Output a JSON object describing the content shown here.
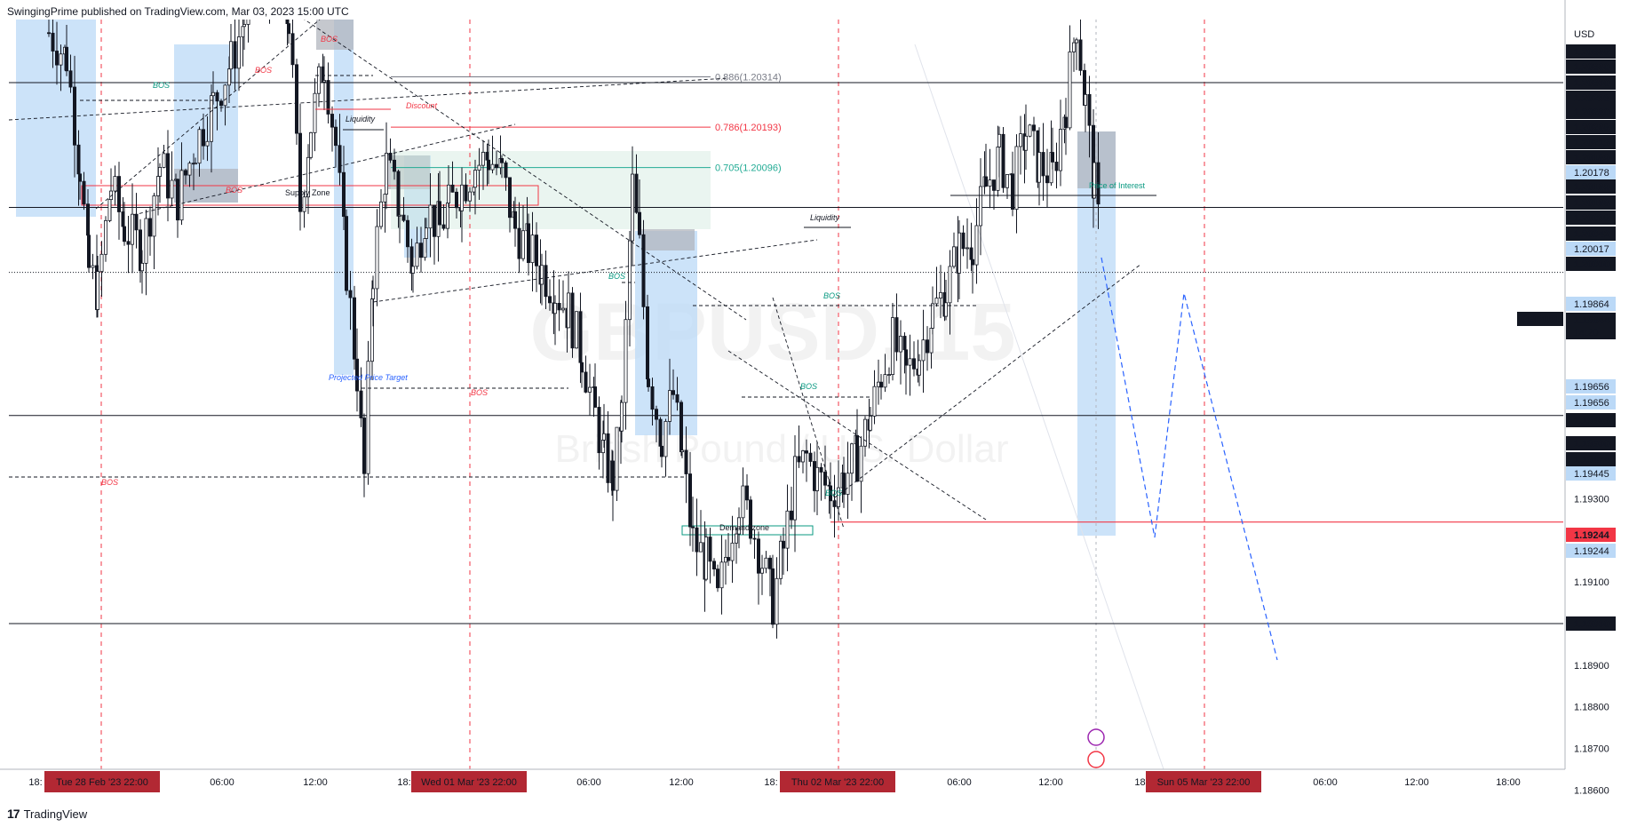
{
  "header": {
    "published": "SwingingPrime published on TradingView.com, Mar 03, 2023 15:00 UTC"
  },
  "footer": {
    "brand": "TradingView",
    "logo": "17"
  },
  "watermark": {
    "symbol": "GBPUSD, 15",
    "description": "British Pound / U.S. Dollar"
  },
  "chart_data": {
    "type": "candlestick",
    "symbol": "GBPUSD",
    "interval": "15",
    "currency": "USD",
    "ylim": [
      1.1855,
      1.2045
    ],
    "x_ticks": [
      "18:",
      "06:00",
      "12:00",
      "18:",
      "06:00",
      "12:00",
      "18:",
      "06:00",
      "12:00",
      "18:",
      "06:00",
      "12:00",
      "18:00"
    ],
    "session_labels": [
      "Tue 28 Feb '23   22:00",
      "Wed 01 Mar '23   22:00",
      "Thu 02 Mar '23   22:00",
      "Sun 05 Mar '23   22:00"
    ],
    "y_ticks": [
      1.186,
      1.187,
      1.188,
      1.189,
      1.191,
      1.193,
      1.197
    ],
    "price_labels": [
      {
        "value": 1.20368,
        "style": "dark"
      },
      {
        "value": 1.2036,
        "style": "dark"
      },
      {
        "value": 1.203,
        "style": "dark"
      },
      {
        "value": 1.20293,
        "style": "dark"
      },
      {
        "value": 1.2028,
        "style": "dark"
      },
      {
        "value": 1.20268,
        "style": "dark"
      },
      {
        "value": 1.20215,
        "style": "dark"
      },
      {
        "value": 1.20189,
        "style": "dark"
      },
      {
        "value": 1.20178,
        "style": "blue"
      },
      {
        "value": 1.20169,
        "style": "dark"
      },
      {
        "value": 1.20166,
        "style": "dark"
      },
      {
        "value": 1.20098,
        "style": "dark"
      },
      {
        "value": 1.20042,
        "style": "dark"
      },
      {
        "value": 1.20017,
        "style": "blue"
      },
      {
        "value": 1.2,
        "style": "dark"
      },
      {
        "value": 1.19864,
        "style": "blue"
      },
      {
        "value": 1.19844,
        "style": "dark"
      },
      {
        "value": 1.19656,
        "style": "blue"
      },
      {
        "value": 1.19656,
        "style": "blue"
      },
      {
        "value": 1.19565,
        "style": "dark"
      },
      {
        "value": 1.195,
        "style": "dark"
      },
      {
        "value": 1.19474,
        "style": "dark"
      },
      {
        "value": 1.19445,
        "style": "blue"
      },
      {
        "value": 1.19244,
        "style": "red"
      },
      {
        "value": 1.19244,
        "style": "blue"
      },
      {
        "value": 1.19,
        "style": "dark"
      }
    ],
    "last_price": {
      "symbol": "GBPUSD",
      "value": 1.19844,
      "countdown": "14:20"
    },
    "horizontal_levels": [
      1.203,
      1.2,
      1.195,
      1.19
    ],
    "fib_levels": [
      {
        "label": "0.886(1.20314)",
        "value": 1.20314
      },
      {
        "label": "0.786(1.20193)",
        "value": 1.20193
      },
      {
        "label": "0.705(1.20096)",
        "value": 1.20096
      }
    ],
    "annotations": [
      "BOS",
      "BOS",
      "BOS",
      "BOS",
      "BOS",
      "BOS",
      "BOS",
      "BOS",
      "BOS",
      "BOS",
      "Discount",
      "Liquidity",
      "Liquidity",
      "Supply Zone",
      "Projected Price Target",
      "Demand zone",
      "Price of Interest"
    ],
    "colors": {
      "bull": "#ffffff",
      "bear": "#131722",
      "blue_zone": "#bbd9f7",
      "red_line": "#f23645",
      "fib_green": "#22ab94",
      "proj_blue": "#2962ff"
    }
  }
}
